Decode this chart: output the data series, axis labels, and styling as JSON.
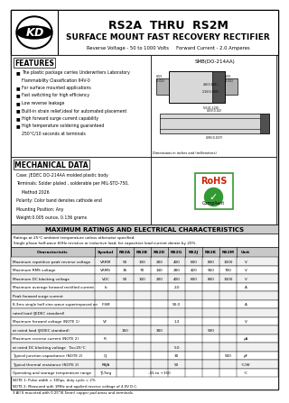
{
  "title1": "RS2A  THRU  RS2M",
  "title2": "SURFACE MOUNT FAST RECOVERY RECTIFIER",
  "subtitle": "Reverse Voltage - 50 to 1000 Volts     Forward Current - 2.0 Amperes",
  "features_title": "FEATURES",
  "features": [
    "The plastic package carries Underwriters Laboratory",
    "Flammability Classification 94V-0",
    "For surface mounted applications",
    "Fast switching for high efficiency",
    "Low reverse leakage",
    "Built-in strain relief,ideal for automated placement",
    "High forward surge current capability",
    "High temperature soldering guaranteed",
    "250°C/10 seconds at terminals"
  ],
  "features_bullet": [
    true,
    false,
    true,
    true,
    true,
    true,
    true,
    true,
    false
  ],
  "mech_title": "MECHANICAL DATA",
  "mech_data": [
    "Case: JEDEC DO-214AA molded plastic body",
    "Terminals: Solder plated , solderable per MIL-STD-750,",
    "Method 2026",
    "Polarity: Color band denotes cathode end",
    "Mounting Position: Any",
    "Weight:0.005 ounce, 0.136 grams"
  ],
  "package_label": "SMB(DO-214AA)",
  "ratings_title": "MAXIMUM RATINGS AND ELECTRICAL CHARACTERISTICS",
  "ratings_note1": "Ratings at 25°C ambient temperature unless otherwise specified.",
  "ratings_note2": "Single phase half-wave 60Hz resistive or inductive load, for capacitive load current derate by 20%.",
  "col_headers": [
    "Characteristic",
    "Symbol",
    "RS2A",
    "RS2B",
    "RS2D",
    "RS2G",
    "RS2J",
    "RS2K",
    "RS2M",
    "Unit"
  ],
  "table_rows": [
    [
      "Maximum repetitive peak reverse voltage",
      "VRRM",
      "50",
      "100",
      "200",
      "400",
      "600",
      "800",
      "1000",
      "V"
    ],
    [
      "Maximum RMS voltage",
      "VRMS",
      "35",
      "70",
      "140",
      "280",
      "420",
      "560",
      "700",
      "V"
    ],
    [
      "Maximum DC blocking voltage",
      "VDC",
      "50",
      "100",
      "200",
      "400",
      "600",
      "800",
      "1000",
      "V"
    ],
    [
      "Maximum average forward rectified current",
      "Io",
      "",
      "",
      "",
      "2.0",
      "",
      "",
      "",
      "A"
    ],
    [
      "Peak forward surge current",
      "",
      "",
      "",
      "",
      "",
      "",
      "",
      "",
      ""
    ],
    [
      "8.3ms single half sine-wave superimposed on",
      "IFSM",
      "",
      "",
      "",
      "50.0",
      "",
      "",
      "",
      "A"
    ],
    [
      "rated load (JEDEC standard)",
      "",
      "",
      "",
      "",
      "",
      "",
      "",
      "",
      ""
    ],
    [
      "Maximum forward voltage (NOTE 1)",
      "VF",
      "",
      "",
      "",
      "1.3",
      "",
      "",
      "",
      "V"
    ],
    [
      "at rated load (JEDEC standard)",
      "",
      "150",
      "",
      "300",
      "",
      "",
      "500",
      "",
      ""
    ],
    [
      "Maximum reverse current (NOTE 2)",
      "IR",
      "",
      "",
      "",
      "",
      "",
      "",
      "",
      "μA"
    ],
    [
      "at rated DC blocking voltage   Ta=25°C",
      "",
      "",
      "",
      "",
      "5.0",
      "",
      "",
      "",
      ""
    ],
    [
      "Typical junction capacitance (NOTE 2)",
      "CJ",
      "",
      "",
      "",
      "30",
      "",
      "",
      "500",
      "pF"
    ],
    [
      "Typical thermal resistance (NOTE 2)",
      "RθJA",
      "",
      "",
      "",
      "50",
      "",
      "",
      "",
      "°C/W"
    ],
    [
      "Operating and storage temperature range",
      "TJ,Tstg",
      "",
      "",
      "-55 to +150",
      "",
      "",
      "",
      "",
      "°C"
    ]
  ],
  "notes": [
    "NOTE 1: Pulse width = 300μs, duty cycle = 2%",
    "NOTE 2: Measured with 1MHz and applied reverse voltage of 4.0V D.C.",
    "3 All S mounted with 0.25\"(6.5mm) copper pad areas and terminals."
  ]
}
